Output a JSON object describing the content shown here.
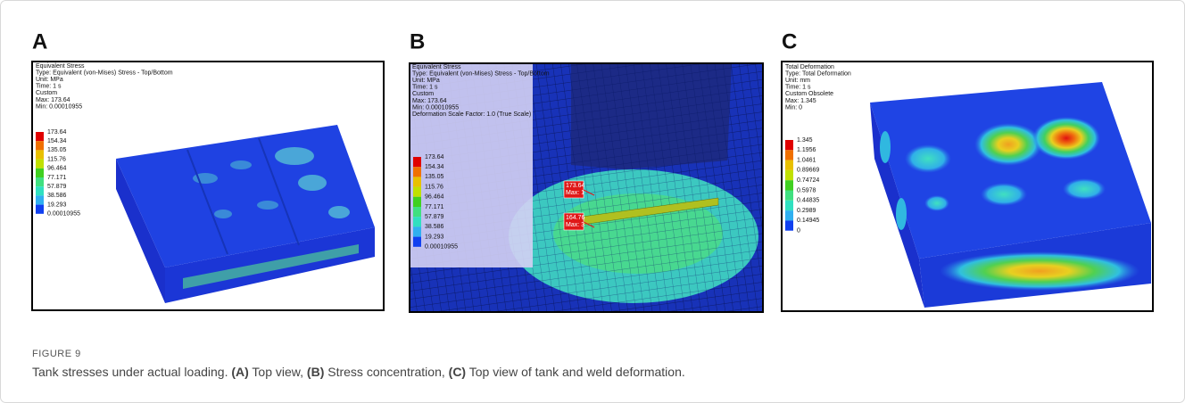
{
  "panels": [
    {
      "letter": "A",
      "legend_header": [
        "Equivalent Stress",
        "Type: Equivalent (von-Mises) Stress - Top/Bottom",
        "Unit: MPa",
        "Time: 1 s",
        "Custom",
        "Max: 173.64",
        "Min: 0.00010955"
      ],
      "scale": [
        "173.64",
        "154.34",
        "135.05",
        "115.76",
        "96.464",
        "77.171",
        "57.879",
        "38.586",
        "19.293",
        "0.00010955"
      ]
    },
    {
      "letter": "B",
      "legend_header": [
        "Equivalent Stress",
        "Type: Equivalent (von-Mises) Stress - Top/Bottom",
        "Unit: MPa",
        "Time: 1 s",
        "Custom",
        "Max: 173.64",
        "Min: 0.00010955",
        "Deformation Scale Factor: 1.0 (True Scale)"
      ],
      "scale": [
        "173.64",
        "154.34",
        "135.05",
        "115.76",
        "96.464",
        "77.171",
        "57.879",
        "38.586",
        "19.293",
        "0.00010955"
      ],
      "probes": [
        {
          "value": "173.64",
          "label": "Max: 1"
        },
        {
          "value": "164.76",
          "label": "Max: 3"
        }
      ]
    },
    {
      "letter": "C",
      "legend_header": [
        "Total Deformation",
        "Type: Total Deformation",
        "Unit: mm",
        "Time: 1 s",
        "Custom Obsolete",
        "Max: 1.345",
        "Min: 0"
      ],
      "scale": [
        "1.345",
        "1.1956",
        "1.0461",
        "0.89669",
        "0.74724",
        "0.5978",
        "0.44835",
        "0.2989",
        "0.14945",
        "0"
      ]
    }
  ],
  "caption": {
    "label": "FIGURE 9",
    "segments": [
      {
        "text": "Tank stresses under actual loading. ",
        "bold": false
      },
      {
        "text": "(A)",
        "bold": true
      },
      {
        "text": " Top view, ",
        "bold": false
      },
      {
        "text": "(B)",
        "bold": true
      },
      {
        "text": " Stress concentration, ",
        "bold": false
      },
      {
        "text": "(C)",
        "bold": true
      },
      {
        "text": " Top view of tank and weld deformation.",
        "bold": false
      }
    ]
  }
}
